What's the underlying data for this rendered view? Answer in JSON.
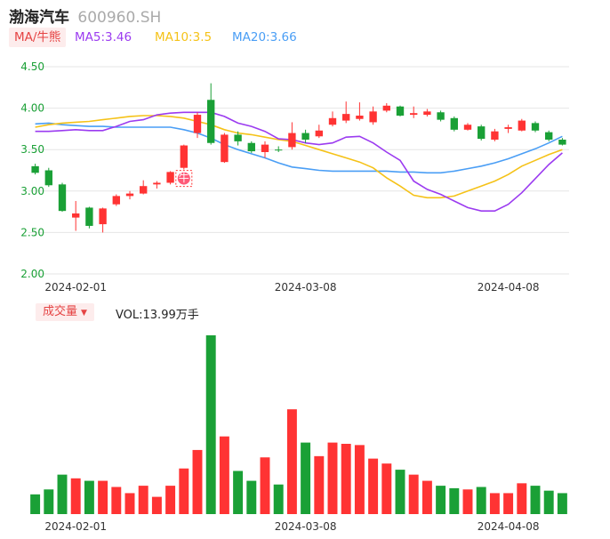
{
  "header": {
    "name": "渤海汽车",
    "code": "600960.SH"
  },
  "ma_legend": {
    "toggle_label": "MA/牛熊",
    "ma5": "MA5:3.46",
    "ma10": "MA10:3.5",
    "ma20": "MA20:3.66"
  },
  "volume_legend": {
    "toggle_label": "成交量",
    "value": "VOL:13.99万手"
  },
  "colors": {
    "up": "#ff3333",
    "down": "#1aa036",
    "ma5": "#9b3bf0",
    "ma10": "#f5c218",
    "ma20": "#4a9ef5",
    "axis_text": "#1aa036"
  },
  "chart_data": [
    {
      "type": "candlestick",
      "y_ticks": [
        "4.50",
        "4.00",
        "3.50",
        "3.00",
        "2.50",
        "2.00"
      ],
      "ylim": [
        2.0,
        4.5
      ],
      "x_ticks": [
        "2024-02-01",
        "2024-03-08",
        "2024-04-08"
      ],
      "candles": [
        {
          "o": 3.3,
          "c": 3.22,
          "h": 3.33,
          "l": 3.2
        },
        {
          "o": 3.25,
          "c": 3.07,
          "h": 3.28,
          "l": 3.05
        },
        {
          "o": 3.08,
          "c": 2.76,
          "h": 3.1,
          "l": 2.75
        },
        {
          "o": 2.68,
          "c": 2.73,
          "h": 2.88,
          "l": 2.52
        },
        {
          "o": 2.8,
          "c": 2.58,
          "h": 2.81,
          "l": 2.55
        },
        {
          "o": 2.6,
          "c": 2.79,
          "h": 2.8,
          "l": 2.5
        },
        {
          "o": 2.84,
          "c": 2.94,
          "h": 2.96,
          "l": 2.82
        },
        {
          "o": 2.94,
          "c": 2.97,
          "h": 3.0,
          "l": 2.9
        },
        {
          "o": 2.97,
          "c": 3.06,
          "h": 3.13,
          "l": 2.96
        },
        {
          "o": 3.08,
          "c": 3.1,
          "h": 3.12,
          "l": 3.03
        },
        {
          "o": 3.1,
          "c": 3.23,
          "h": 3.24,
          "l": 3.08
        },
        {
          "o": 3.28,
          "c": 3.55,
          "h": 3.56,
          "l": 3.26
        },
        {
          "o": 3.7,
          "c": 3.92,
          "h": 3.95,
          "l": 3.64
        },
        {
          "o": 4.1,
          "c": 3.58,
          "h": 4.3,
          "l": 3.56
        },
        {
          "o": 3.35,
          "c": 3.68,
          "h": 3.7,
          "l": 3.34
        },
        {
          "o": 3.68,
          "c": 3.6,
          "h": 3.72,
          "l": 3.55
        },
        {
          "o": 3.58,
          "c": 3.48,
          "h": 3.6,
          "l": 3.46
        },
        {
          "o": 3.47,
          "c": 3.56,
          "h": 3.6,
          "l": 3.4
        },
        {
          "o": 3.5,
          "c": 3.49,
          "h": 3.54,
          "l": 3.47
        },
        {
          "o": 3.53,
          "c": 3.7,
          "h": 3.83,
          "l": 3.5
        },
        {
          "o": 3.7,
          "c": 3.62,
          "h": 3.74,
          "l": 3.58
        },
        {
          "o": 3.66,
          "c": 3.73,
          "h": 3.8,
          "l": 3.64
        },
        {
          "o": 3.8,
          "c": 3.88,
          "h": 3.96,
          "l": 3.78
        },
        {
          "o": 3.85,
          "c": 3.93,
          "h": 4.08,
          "l": 3.82
        },
        {
          "o": 3.87,
          "c": 3.91,
          "h": 4.07,
          "l": 3.85
        },
        {
          "o": 3.83,
          "c": 3.96,
          "h": 4.02,
          "l": 3.8
        },
        {
          "o": 3.97,
          "c": 4.03,
          "h": 4.06,
          "l": 3.95
        },
        {
          "o": 4.02,
          "c": 3.91,
          "h": 4.03,
          "l": 3.9
        },
        {
          "o": 3.92,
          "c": 3.94,
          "h": 4.02,
          "l": 3.88
        },
        {
          "o": 3.92,
          "c": 3.96,
          "h": 3.99,
          "l": 3.9
        },
        {
          "o": 3.95,
          "c": 3.86,
          "h": 3.97,
          "l": 3.84
        },
        {
          "o": 3.88,
          "c": 3.74,
          "h": 3.9,
          "l": 3.72
        },
        {
          "o": 3.74,
          "c": 3.8,
          "h": 3.82,
          "l": 3.73
        },
        {
          "o": 3.78,
          "c": 3.63,
          "h": 3.8,
          "l": 3.61
        },
        {
          "o": 3.62,
          "c": 3.72,
          "h": 3.75,
          "l": 3.6
        },
        {
          "o": 3.75,
          "c": 3.77,
          "h": 3.8,
          "l": 3.7
        },
        {
          "o": 3.73,
          "c": 3.85,
          "h": 3.87,
          "l": 3.72
        },
        {
          "o": 3.82,
          "c": 3.73,
          "h": 3.84,
          "l": 3.71
        },
        {
          "o": 3.71,
          "c": 3.62,
          "h": 3.73,
          "l": 3.6
        },
        {
          "o": 3.62,
          "c": 3.56,
          "h": 3.64,
          "l": 3.55
        }
      ],
      "ma5": [
        3.72,
        3.72,
        3.73,
        3.74,
        3.73,
        3.73,
        3.78,
        3.84,
        3.86,
        3.92,
        3.94,
        3.95,
        3.95,
        3.95,
        3.9,
        3.82,
        3.78,
        3.72,
        3.63,
        3.62,
        3.58,
        3.56,
        3.58,
        3.65,
        3.66,
        3.58,
        3.47,
        3.37,
        3.12,
        3.02,
        2.96,
        2.88,
        2.8,
        2.76,
        2.76,
        2.84,
        2.98,
        3.15,
        3.32,
        3.46
      ],
      "ma10": [
        3.77,
        3.8,
        3.82,
        3.83,
        3.84,
        3.86,
        3.88,
        3.9,
        3.91,
        3.91,
        3.9,
        3.88,
        3.84,
        3.8,
        3.74,
        3.7,
        3.68,
        3.65,
        3.62,
        3.6,
        3.55,
        3.5,
        3.45,
        3.4,
        3.35,
        3.28,
        3.16,
        3.06,
        2.95,
        2.92,
        2.92,
        2.94,
        3.0,
        3.06,
        3.12,
        3.2,
        3.3,
        3.37,
        3.44,
        3.5
      ],
      "ma20": [
        3.81,
        3.82,
        3.8,
        3.79,
        3.78,
        3.78,
        3.77,
        3.77,
        3.77,
        3.77,
        3.77,
        3.74,
        3.7,
        3.64,
        3.56,
        3.5,
        3.45,
        3.4,
        3.34,
        3.29,
        3.27,
        3.25,
        3.24,
        3.24,
        3.24,
        3.24,
        3.24,
        3.23,
        3.23,
        3.22,
        3.22,
        3.24,
        3.27,
        3.3,
        3.34,
        3.39,
        3.45,
        3.51,
        3.58,
        3.66
      ],
      "annotation": {
        "index": 11,
        "label": "牛"
      }
    },
    {
      "type": "bar",
      "name": "volume",
      "ylim": [
        0,
        14.5
      ],
      "x_ticks": [
        "2024-02-01",
        "2024-03-08",
        "2024-04-08"
      ],
      "values": [
        1.6,
        2.0,
        3.2,
        2.9,
        2.7,
        2.7,
        2.2,
        1.7,
        2.3,
        1.4,
        2.3,
        3.7,
        5.2,
        14.5,
        6.3,
        3.5,
        2.7,
        4.6,
        2.4,
        8.5,
        5.8,
        4.7,
        5.8,
        5.7,
        5.6,
        4.5,
        4.1,
        3.6,
        3.2,
        2.7,
        2.3,
        2.1,
        2.0,
        2.2,
        1.7,
        1.7,
        2.5,
        2.3,
        1.9,
        1.7
      ],
      "up": [
        false,
        false,
        false,
        true,
        false,
        true,
        true,
        true,
        true,
        true,
        true,
        true,
        true,
        false,
        true,
        false,
        false,
        true,
        false,
        true,
        false,
        true,
        true,
        true,
        true,
        true,
        true,
        false,
        true,
        true,
        false,
        false,
        true,
        false,
        true,
        true,
        true,
        false,
        false,
        false
      ]
    }
  ]
}
